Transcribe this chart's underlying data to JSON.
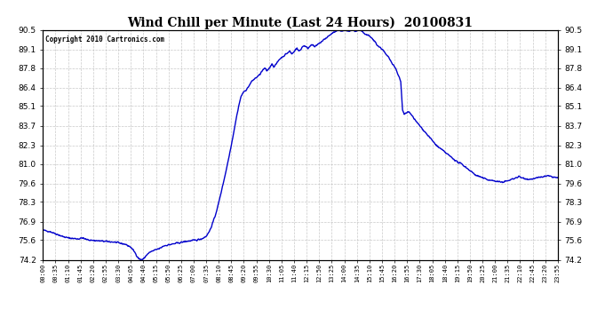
{
  "title": "Wind Chill per Minute (Last 24 Hours)  20100831",
  "copyright_text": "Copyright 2010 Cartronics.com",
  "line_color": "#0000cc",
  "background_color": "#ffffff",
  "plot_bg_color": "#ffffff",
  "grid_color": "#bbbbbb",
  "ylim": [
    74.2,
    90.5
  ],
  "yticks": [
    74.2,
    75.6,
    76.9,
    78.3,
    79.6,
    81.0,
    82.3,
    83.7,
    85.1,
    86.4,
    87.8,
    89.1,
    90.5
  ],
  "xtick_labels": [
    "00:00",
    "00:35",
    "01:10",
    "01:45",
    "02:20",
    "02:55",
    "03:30",
    "04:05",
    "04:40",
    "05:15",
    "05:50",
    "06:25",
    "07:00",
    "07:35",
    "08:10",
    "08:45",
    "09:20",
    "09:55",
    "10:30",
    "11:05",
    "11:40",
    "12:15",
    "12:50",
    "13:25",
    "14:00",
    "14:35",
    "15:10",
    "15:45",
    "16:20",
    "16:55",
    "17:30",
    "18:05",
    "18:40",
    "19:15",
    "19:50",
    "20:25",
    "21:00",
    "21:35",
    "22:10",
    "22:45",
    "23:20",
    "23:55"
  ],
  "num_points": 1440,
  "line_width": 1.0,
  "keypoints": [
    [
      0,
      76.3
    ],
    [
      20,
      76.2
    ],
    [
      40,
      76.0
    ],
    [
      55,
      75.85
    ],
    [
      70,
      75.75
    ],
    [
      80,
      75.72
    ],
    [
      100,
      75.68
    ],
    [
      110,
      75.75
    ],
    [
      115,
      75.7
    ],
    [
      120,
      75.65
    ],
    [
      130,
      75.6
    ],
    [
      150,
      75.55
    ],
    [
      175,
      75.5
    ],
    [
      200,
      75.45
    ],
    [
      210,
      75.4
    ],
    [
      230,
      75.3
    ],
    [
      245,
      75.1
    ],
    [
      255,
      74.8
    ],
    [
      262,
      74.5
    ],
    [
      268,
      74.28
    ],
    [
      272,
      74.22
    ],
    [
      278,
      74.22
    ],
    [
      283,
      74.3
    ],
    [
      290,
      74.55
    ],
    [
      300,
      74.75
    ],
    [
      310,
      74.85
    ],
    [
      315,
      74.9
    ],
    [
      320,
      74.95
    ],
    [
      325,
      74.98
    ],
    [
      330,
      75.05
    ],
    [
      335,
      75.15
    ],
    [
      340,
      75.2
    ],
    [
      350,
      75.25
    ],
    [
      360,
      75.3
    ],
    [
      370,
      75.35
    ],
    [
      380,
      75.4
    ],
    [
      390,
      75.45
    ],
    [
      400,
      75.5
    ],
    [
      415,
      75.55
    ],
    [
      430,
      75.6
    ],
    [
      445,
      75.7
    ],
    [
      455,
      75.85
    ],
    [
      460,
      76.0
    ],
    [
      465,
      76.2
    ],
    [
      470,
      76.5
    ],
    [
      480,
      77.2
    ],
    [
      490,
      78.1
    ],
    [
      500,
      79.2
    ],
    [
      510,
      80.3
    ],
    [
      520,
      81.5
    ],
    [
      530,
      82.8
    ],
    [
      540,
      84.2
    ],
    [
      548,
      85.2
    ],
    [
      554,
      85.8
    ],
    [
      558,
      86.0
    ],
    [
      562,
      86.1
    ],
    [
      565,
      86.2
    ],
    [
      570,
      86.3
    ],
    [
      575,
      86.5
    ],
    [
      580,
      86.7
    ],
    [
      585,
      86.9
    ],
    [
      590,
      87.0
    ],
    [
      595,
      87.1
    ],
    [
      600,
      87.2
    ],
    [
      605,
      87.3
    ],
    [
      610,
      87.5
    ],
    [
      615,
      87.65
    ],
    [
      620,
      87.8
    ],
    [
      625,
      87.6
    ],
    [
      630,
      87.7
    ],
    [
      635,
      87.9
    ],
    [
      640,
      88.1
    ],
    [
      645,
      87.9
    ],
    [
      650,
      88.0
    ],
    [
      655,
      88.2
    ],
    [
      660,
      88.4
    ],
    [
      665,
      88.5
    ],
    [
      670,
      88.6
    ],
    [
      675,
      88.7
    ],
    [
      680,
      88.8
    ],
    [
      685,
      88.9
    ],
    [
      690,
      89.0
    ],
    [
      695,
      88.8
    ],
    [
      700,
      88.9
    ],
    [
      705,
      89.1
    ],
    [
      710,
      89.2
    ],
    [
      715,
      89.0
    ],
    [
      720,
      89.1
    ],
    [
      725,
      89.3
    ],
    [
      730,
      89.4
    ],
    [
      735,
      89.3
    ],
    [
      740,
      89.2
    ],
    [
      745,
      89.3
    ],
    [
      750,
      89.5
    ],
    [
      755,
      89.4
    ],
    [
      760,
      89.3
    ],
    [
      765,
      89.4
    ],
    [
      770,
      89.5
    ],
    [
      775,
      89.6
    ],
    [
      780,
      89.7
    ],
    [
      785,
      89.8
    ],
    [
      790,
      89.9
    ],
    [
      795,
      90.0
    ],
    [
      800,
      90.1
    ],
    [
      805,
      90.2
    ],
    [
      810,
      90.3
    ],
    [
      815,
      90.35
    ],
    [
      820,
      90.4
    ],
    [
      825,
      90.45
    ],
    [
      830,
      90.5
    ],
    [
      835,
      90.4
    ],
    [
      840,
      90.45
    ],
    [
      845,
      90.5
    ],
    [
      850,
      90.45
    ],
    [
      855,
      90.4
    ],
    [
      860,
      90.45
    ],
    [
      865,
      90.5
    ],
    [
      870,
      90.45
    ],
    [
      875,
      90.4
    ],
    [
      880,
      90.45
    ],
    [
      885,
      90.5
    ],
    [
      890,
      90.4
    ],
    [
      895,
      90.3
    ],
    [
      900,
      90.2
    ],
    [
      910,
      90.1
    ],
    [
      920,
      89.9
    ],
    [
      930,
      89.6
    ],
    [
      935,
      89.4
    ],
    [
      940,
      89.3
    ],
    [
      945,
      89.2
    ],
    [
      950,
      89.1
    ],
    [
      955,
      88.9
    ],
    [
      960,
      88.7
    ],
    [
      965,
      88.6
    ],
    [
      970,
      88.4
    ],
    [
      975,
      88.2
    ],
    [
      980,
      88.0
    ],
    [
      985,
      87.8
    ],
    [
      990,
      87.5
    ],
    [
      995,
      87.2
    ],
    [
      1000,
      86.8
    ],
    [
      1005,
      84.8
    ],
    [
      1010,
      84.5
    ],
    [
      1015,
      84.6
    ],
    [
      1020,
      84.7
    ],
    [
      1025,
      84.6
    ],
    [
      1030,
      84.5
    ],
    [
      1035,
      84.3
    ],
    [
      1040,
      84.1
    ],
    [
      1050,
      83.8
    ],
    [
      1060,
      83.5
    ],
    [
      1070,
      83.2
    ],
    [
      1080,
      82.9
    ],
    [
      1090,
      82.6
    ],
    [
      1100,
      82.3
    ],
    [
      1110,
      82.1
    ],
    [
      1120,
      81.9
    ],
    [
      1130,
      81.7
    ],
    [
      1140,
      81.5
    ],
    [
      1150,
      81.3
    ],
    [
      1160,
      81.1
    ],
    [
      1170,
      81.0
    ],
    [
      1180,
      80.8
    ],
    [
      1190,
      80.6
    ],
    [
      1200,
      80.4
    ],
    [
      1210,
      80.2
    ],
    [
      1220,
      80.1
    ],
    [
      1230,
      80.0
    ],
    [
      1240,
      79.9
    ],
    [
      1250,
      79.85
    ],
    [
      1260,
      79.8
    ],
    [
      1270,
      79.75
    ],
    [
      1280,
      79.7
    ],
    [
      1290,
      79.75
    ],
    [
      1300,
      79.8
    ],
    [
      1310,
      79.9
    ],
    [
      1320,
      80.0
    ],
    [
      1330,
      80.1
    ],
    [
      1340,
      80.0
    ],
    [
      1350,
      79.95
    ],
    [
      1360,
      79.9
    ],
    [
      1370,
      79.95
    ],
    [
      1380,
      80.0
    ],
    [
      1390,
      80.05
    ],
    [
      1400,
      80.1
    ],
    [
      1410,
      80.15
    ],
    [
      1420,
      80.1
    ],
    [
      1430,
      80.05
    ],
    [
      1439,
      80.0
    ]
  ]
}
